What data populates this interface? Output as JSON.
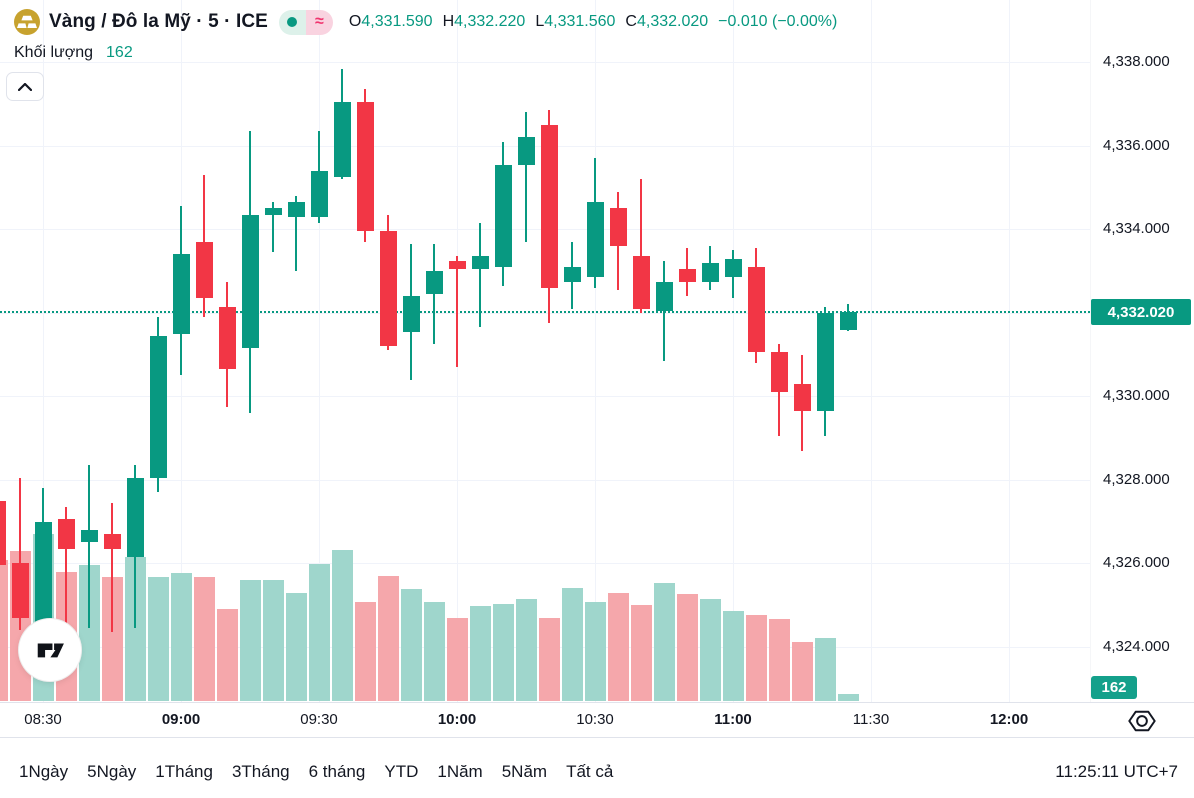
{
  "header": {
    "symbol_title": "Vàng / Đô la Mỹ · 5 · ICE",
    "ohlc": [
      {
        "label": "O",
        "value": "4,331.590"
      },
      {
        "label": "H",
        "value": "4,332.220"
      },
      {
        "label": "L",
        "value": "4,331.560"
      },
      {
        "label": "C",
        "value": "4,332.020"
      }
    ],
    "change": "−0.010 (−0.00%)",
    "indicator_label": "Khối lượng",
    "indicator_value": "162"
  },
  "price_axis": {
    "ticks": [
      {
        "price": 4338,
        "label": "4,338.000"
      },
      {
        "price": 4336,
        "label": "4,336.000"
      },
      {
        "price": 4334,
        "label": "4,334.000"
      },
      {
        "price": 4330,
        "label": "4,330.000"
      },
      {
        "price": 4328,
        "label": "4,328.000"
      },
      {
        "price": 4326,
        "label": "4,326.000"
      },
      {
        "price": 4324,
        "label": "4,324.000"
      }
    ],
    "gridline_prices": [
      4338,
      4336,
      4334,
      4332,
      4330,
      4328,
      4326,
      4324
    ],
    "price_badge": "4,332.020",
    "volume_badge": "162"
  },
  "time_axis": {
    "ticks": [
      {
        "label": "08:30",
        "bold": false
      },
      {
        "label": "09:00",
        "bold": true
      },
      {
        "label": "09:30",
        "bold": false
      },
      {
        "label": "10:00",
        "bold": true
      },
      {
        "label": "10:30",
        "bold": false
      },
      {
        "label": "11:00",
        "bold": true
      },
      {
        "label": "11:30",
        "bold": false
      },
      {
        "label": "12:00",
        "bold": true
      }
    ]
  },
  "toolbar": {
    "ranges": [
      "1Ngày",
      "5Ngày",
      "1Tháng",
      "3Tháng",
      "6 tháng",
      "YTD",
      "1Năm",
      "5Năm",
      "Tất cả"
    ],
    "clock": "11:25:11 UTC+7"
  },
  "colors": {
    "up": "#089981",
    "down": "#f23645",
    "vol_up": "#9fd6cc",
    "vol_down": "#f5a7ab",
    "accent_text": "#089981",
    "text": "#131722",
    "grid": "#f0f3fa",
    "badge": "#089981"
  },
  "chart_data": {
    "type": "candlestick",
    "title": "Vàng / Đô la Mỹ",
    "interval_minutes": 5,
    "exchange": "ICE",
    "price_line_value": 4332.02,
    "ylim": [
      4323.5,
      4338.6
    ],
    "legend_volume": 162,
    "volume_note": "last bar = 162 (labeled); earlier bar volumes estimated from bar heights",
    "candles": [
      {
        "t": "08:20",
        "o": 4327.5,
        "h": 4327.6,
        "l": 4325.9,
        "c": 4325.95,
        "v": 3260,
        "clipped": true
      },
      {
        "t": "08:25",
        "o": 4326.0,
        "h": 4328.05,
        "l": 4324.4,
        "c": 4324.7,
        "v": 3470
      },
      {
        "t": "08:30",
        "o": 4324.5,
        "h": 4327.8,
        "l": 4324.3,
        "c": 4327.0,
        "v": 3860
      },
      {
        "t": "08:35",
        "o": 4327.05,
        "h": 4327.35,
        "l": 4324.4,
        "c": 4326.35,
        "v": 2990
      },
      {
        "t": "08:40",
        "o": 4326.5,
        "h": 4328.35,
        "l": 4324.45,
        "c": 4326.8,
        "v": 3150
      },
      {
        "t": "08:45",
        "o": 4326.7,
        "h": 4327.45,
        "l": 4324.35,
        "c": 4326.35,
        "v": 2880
      },
      {
        "t": "08:50",
        "o": 4326.15,
        "h": 4328.35,
        "l": 4324.45,
        "c": 4328.05,
        "v": 3340
      },
      {
        "t": "08:55",
        "o": 4328.05,
        "h": 4331.9,
        "l": 4327.7,
        "c": 4331.45,
        "v": 2880
      },
      {
        "t": "09:00",
        "o": 4331.5,
        "h": 4334.55,
        "l": 4330.5,
        "c": 4333.4,
        "v": 2970
      },
      {
        "t": "09:05",
        "o": 4333.7,
        "h": 4335.3,
        "l": 4331.9,
        "c": 4332.35,
        "v": 2880
      },
      {
        "t": "09:10",
        "o": 4332.15,
        "h": 4332.75,
        "l": 4329.75,
        "c": 4330.65,
        "v": 2120
      },
      {
        "t": "09:15",
        "o": 4331.15,
        "h": 4336.35,
        "l": 4329.6,
        "c": 4334.35,
        "v": 2810
      },
      {
        "t": "09:20",
        "o": 4334.35,
        "h": 4334.65,
        "l": 4333.45,
        "c": 4334.5,
        "v": 2810
      },
      {
        "t": "09:25",
        "o": 4334.3,
        "h": 4334.8,
        "l": 4333.0,
        "c": 4334.65,
        "v": 2510
      },
      {
        "t": "09:30",
        "o": 4334.3,
        "h": 4336.35,
        "l": 4334.15,
        "c": 4335.4,
        "v": 3170
      },
      {
        "t": "09:35",
        "o": 4335.25,
        "h": 4337.85,
        "l": 4335.2,
        "c": 4337.05,
        "v": 3500
      },
      {
        "t": "09:40",
        "o": 4337.05,
        "h": 4337.35,
        "l": 4333.7,
        "c": 4333.95,
        "v": 2300
      },
      {
        "t": "09:45",
        "o": 4333.95,
        "h": 4334.35,
        "l": 4331.1,
        "c": 4331.2,
        "v": 2900
      },
      {
        "t": "09:50",
        "o": 4331.55,
        "h": 4333.65,
        "l": 4330.4,
        "c": 4332.4,
        "v": 2600
      },
      {
        "t": "09:55",
        "o": 4332.45,
        "h": 4333.65,
        "l": 4331.25,
        "c": 4333.0,
        "v": 2280
      },
      {
        "t": "10:00",
        "o": 4333.25,
        "h": 4333.35,
        "l": 4330.7,
        "c": 4333.05,
        "v": 1930
      },
      {
        "t": "10:05",
        "o": 4333.05,
        "h": 4334.15,
        "l": 4331.65,
        "c": 4333.35,
        "v": 2190
      },
      {
        "t": "10:10",
        "o": 4333.1,
        "h": 4336.1,
        "l": 4332.65,
        "c": 4335.55,
        "v": 2250
      },
      {
        "t": "10:15",
        "o": 4335.55,
        "h": 4336.8,
        "l": 4333.7,
        "c": 4336.2,
        "v": 2370
      },
      {
        "t": "10:20",
        "o": 4336.5,
        "h": 4336.85,
        "l": 4331.75,
        "c": 4332.6,
        "v": 1930
      },
      {
        "t": "10:25",
        "o": 4332.75,
        "h": 4333.7,
        "l": 4332.1,
        "c": 4333.1,
        "v": 2620
      },
      {
        "t": "10:30",
        "o": 4332.85,
        "h": 4335.7,
        "l": 4332.6,
        "c": 4334.65,
        "v": 2300
      },
      {
        "t": "10:35",
        "o": 4334.5,
        "h": 4334.9,
        "l": 4332.55,
        "c": 4333.6,
        "v": 2510
      },
      {
        "t": "10:40",
        "o": 4333.35,
        "h": 4335.2,
        "l": 4332.0,
        "c": 4332.1,
        "v": 2230
      },
      {
        "t": "10:45",
        "o": 4332.05,
        "h": 4333.25,
        "l": 4330.85,
        "c": 4332.75,
        "v": 2740
      },
      {
        "t": "10:50",
        "o": 4333.05,
        "h": 4333.55,
        "l": 4332.4,
        "c": 4332.75,
        "v": 2480
      },
      {
        "t": "10:55",
        "o": 4332.75,
        "h": 4333.6,
        "l": 4332.55,
        "c": 4333.2,
        "v": 2370
      },
      {
        "t": "11:00",
        "o": 4332.85,
        "h": 4333.5,
        "l": 4332.35,
        "c": 4333.3,
        "v": 2090
      },
      {
        "t": "11:05",
        "o": 4333.1,
        "h": 4333.55,
        "l": 4330.8,
        "c": 4331.05,
        "v": 2000
      },
      {
        "t": "11:10",
        "o": 4331.05,
        "h": 4331.25,
        "l": 4329.05,
        "c": 4330.1,
        "v": 1890
      },
      {
        "t": "11:15",
        "o": 4330.3,
        "h": 4331.0,
        "l": 4328.7,
        "c": 4329.65,
        "v": 1360
      },
      {
        "t": "11:20",
        "o": 4329.65,
        "h": 4332.15,
        "l": 4329.05,
        "c": 4332.0,
        "v": 1450
      },
      {
        "t": "11:25",
        "o": 4331.59,
        "h": 4332.22,
        "l": 4331.56,
        "c": 4332.02,
        "v": 162
      }
    ]
  }
}
